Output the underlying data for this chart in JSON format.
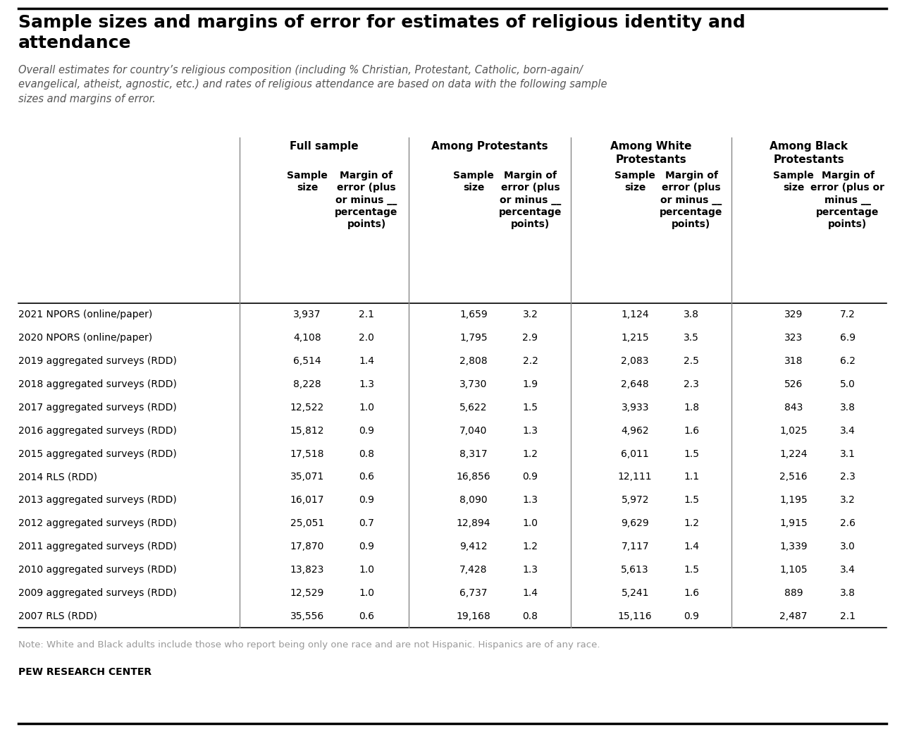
{
  "title": "Sample sizes and margins of error for estimates of religious identity and\nattendance",
  "subtitle": "Overall estimates for country’s religious composition (including % Christian, Protestant, Catholic, born-again/\nevangelical, atheist, agnostic, etc.) and rates of religious attendance are based on data with the following sample\nsizes and margins of error.",
  "note": "Note: White and Black adults include those who report being only one race and are not Hispanic. Hispanics are of any race.",
  "source": "PEW RESEARCH CENTER",
  "rows": [
    [
      "2021 NPORS (online/paper)",
      "3,937",
      "2.1",
      "1,659",
      "3.2",
      "1,124",
      "3.8",
      "329",
      "7.2"
    ],
    [
      "2020 NPORS (online/paper)",
      "4,108",
      "2.0",
      "1,795",
      "2.9",
      "1,215",
      "3.5",
      "323",
      "6.9"
    ],
    [
      "2019 aggregated surveys (RDD)",
      "6,514",
      "1.4",
      "2,808",
      "2.2",
      "2,083",
      "2.5",
      "318",
      "6.2"
    ],
    [
      "2018 aggregated surveys (RDD)",
      "8,228",
      "1.3",
      "3,730",
      "1.9",
      "2,648",
      "2.3",
      "526",
      "5.0"
    ],
    [
      "2017 aggregated surveys (RDD)",
      "12,522",
      "1.0",
      "5,622",
      "1.5",
      "3,933",
      "1.8",
      "843",
      "3.8"
    ],
    [
      "2016 aggregated surveys (RDD)",
      "15,812",
      "0.9",
      "7,040",
      "1.3",
      "4,962",
      "1.6",
      "1,025",
      "3.4"
    ],
    [
      "2015 aggregated surveys (RDD)",
      "17,518",
      "0.8",
      "8,317",
      "1.2",
      "6,011",
      "1.5",
      "1,224",
      "3.1"
    ],
    [
      "2014 RLS (RDD)",
      "35,071",
      "0.6",
      "16,856",
      "0.9",
      "12,111",
      "1.1",
      "2,516",
      "2.3"
    ],
    [
      "2013 aggregated surveys (RDD)",
      "16,017",
      "0.9",
      "8,090",
      "1.3",
      "5,972",
      "1.5",
      "1,195",
      "3.2"
    ],
    [
      "2012 aggregated surveys (RDD)",
      "25,051",
      "0.7",
      "12,894",
      "1.0",
      "9,629",
      "1.2",
      "1,915",
      "2.6"
    ],
    [
      "2011 aggregated surveys (RDD)",
      "17,870",
      "0.9",
      "9,412",
      "1.2",
      "7,117",
      "1.4",
      "1,339",
      "3.0"
    ],
    [
      "2010 aggregated surveys (RDD)",
      "13,823",
      "1.0",
      "7,428",
      "1.3",
      "5,613",
      "1.5",
      "1,105",
      "3.4"
    ],
    [
      "2009 aggregated surveys (RDD)",
      "12,529",
      "1.0",
      "6,737",
      "1.4",
      "5,241",
      "1.6",
      "889",
      "3.8"
    ],
    [
      "2007 RLS (RDD)",
      "35,556",
      "0.6",
      "19,168",
      "0.8",
      "15,116",
      "0.9",
      "2,487",
      "2.1"
    ]
  ],
  "background_color": "#ffffff",
  "title_color": "#000000",
  "subtitle_color": "#555555",
  "header_color": "#000000",
  "data_color": "#000000",
  "note_color": "#999999",
  "source_color": "#000000"
}
